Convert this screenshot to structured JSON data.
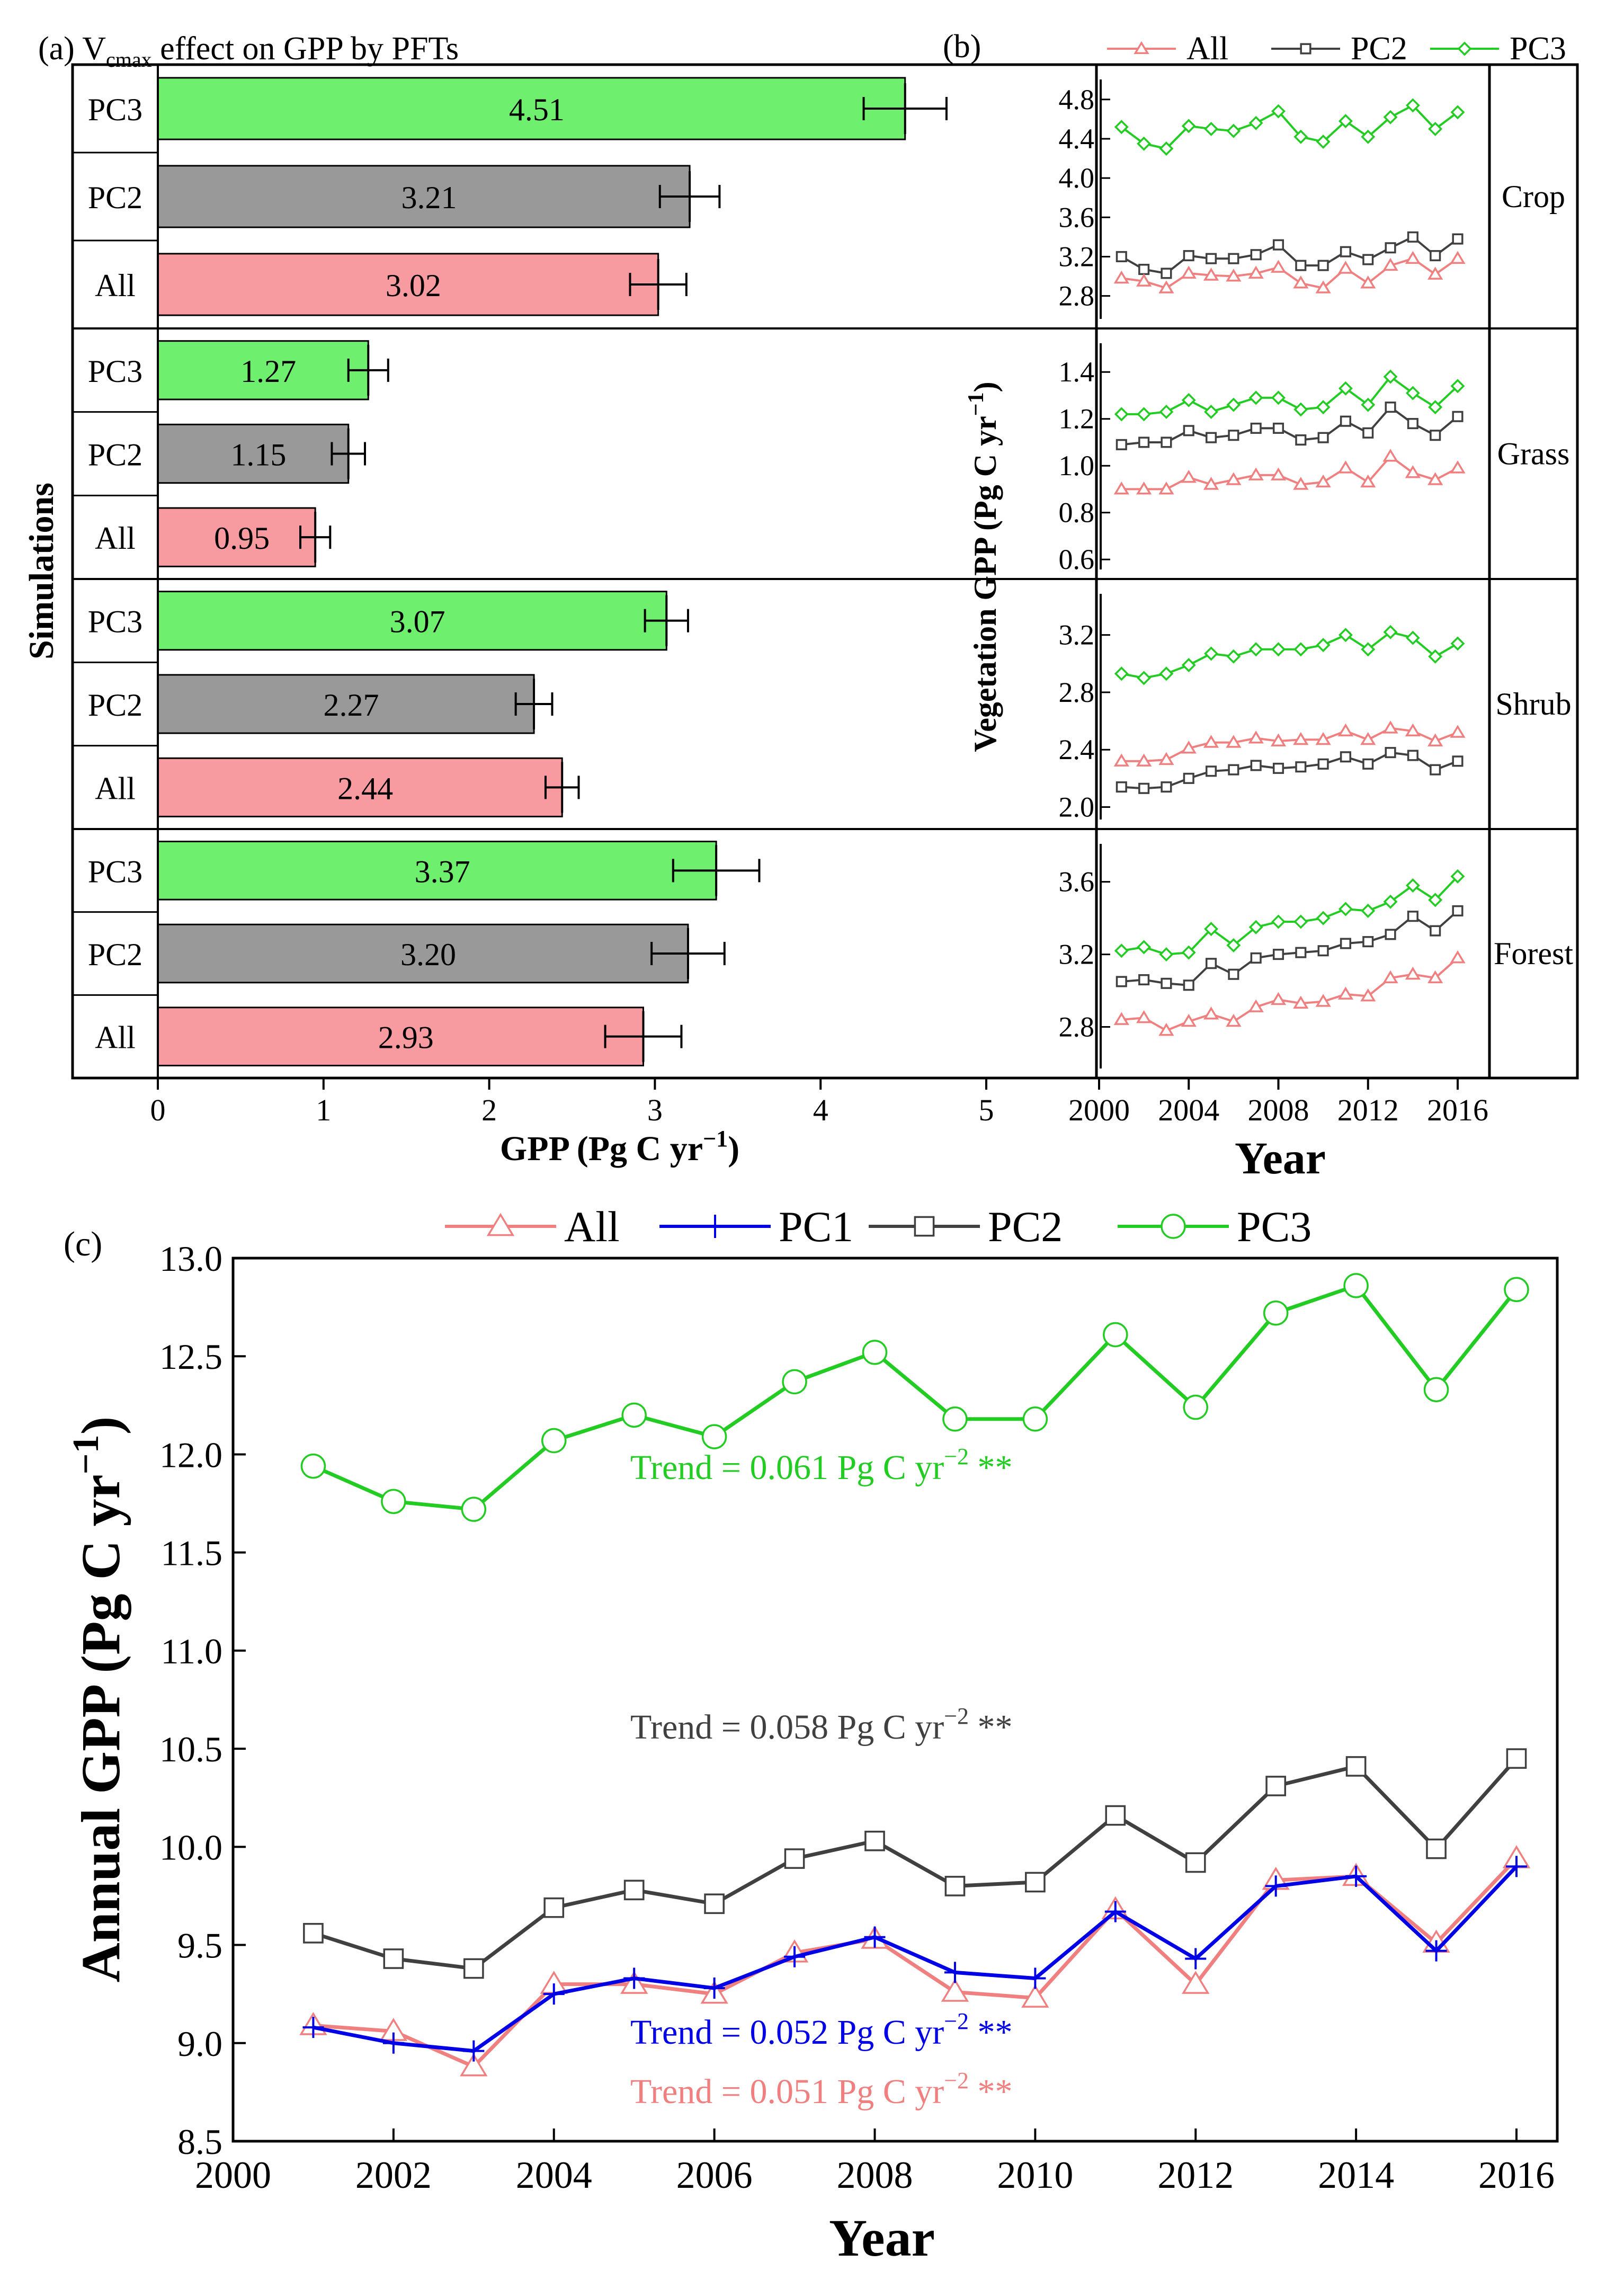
{
  "colors": {
    "all": "#f08080",
    "all_fill": "#f89ba0",
    "pc1": "#0000e6",
    "pc2": "#404040",
    "pc2_fill": "#999999",
    "pc3": "#22cc22",
    "pc3_fill": "#6ef06e",
    "axis": "#000000"
  },
  "chart_data": [
    {
      "panel": "a",
      "type": "bar",
      "orientation": "horizontal",
      "title_parts": {
        "prefix": "(a) V",
        "subscript": "cmax",
        "suffix": " effect on GPP by PFTs"
      },
      "xlabel": "GPP (Pg C yr",
      "xlabel_sup": "−1",
      "xlabel_close": ")",
      "ylabel": "Simulations",
      "xlim": [
        0,
        5
      ],
      "xticks": [
        "0",
        "1",
        "2",
        "3",
        "4",
        "5"
      ],
      "groups": [
        {
          "pft": "Crop",
          "bars": [
            {
              "sim": "PC3",
              "label": "PC3",
              "value": 4.51,
              "value_label": "4.51",
              "err": 0.25
            },
            {
              "sim": "PC2",
              "label": "PC2",
              "value": 3.21,
              "value_label": "3.21",
              "err": 0.18
            },
            {
              "sim": "All",
              "label": "All",
              "value": 3.02,
              "value_label": "3.02",
              "err": 0.17
            }
          ]
        },
        {
          "pft": "Grass",
          "bars": [
            {
              "sim": "PC3",
              "label": "PC3",
              "value": 1.27,
              "value_label": "1.27",
              "err": 0.12
            },
            {
              "sim": "PC2",
              "label": "PC2",
              "value": 1.15,
              "value_label": "1.15",
              "err": 0.1
            },
            {
              "sim": "All",
              "label": "All",
              "value": 0.95,
              "value_label": "0.95",
              "err": 0.09
            }
          ]
        },
        {
          "pft": "Shrub",
          "bars": [
            {
              "sim": "PC3",
              "label": "PC3",
              "value": 3.07,
              "value_label": "3.07",
              "err": 0.13
            },
            {
              "sim": "PC2",
              "label": "PC2",
              "value": 2.27,
              "value_label": "2.27",
              "err": 0.11
            },
            {
              "sim": "All",
              "label": "All",
              "value": 2.44,
              "value_label": "2.44",
              "err": 0.1
            }
          ]
        },
        {
          "pft": "Forest",
          "bars": [
            {
              "sim": "PC3",
              "label": "PC3",
              "value": 3.37,
              "value_label": "3.37",
              "err": 0.26
            },
            {
              "sim": "PC2",
              "label": "PC2",
              "value": 3.2,
              "value_label": "3.20",
              "err": 0.22
            },
            {
              "sim": "All",
              "label": "All",
              "value": 2.93,
              "value_label": "2.93",
              "err": 0.23
            }
          ]
        }
      ]
    },
    {
      "panel": "b",
      "type": "line",
      "title": "(b)",
      "ylabel": "Vegetation GPP (Pg C yr",
      "ylabel_sup": "−1",
      "ylabel_close": ")",
      "xlabel": "Year",
      "x": [
        2001,
        2002,
        2003,
        2004,
        2005,
        2006,
        2007,
        2008,
        2009,
        2010,
        2011,
        2012,
        2013,
        2014,
        2015,
        2016
      ],
      "xlim": [
        2000,
        2017
      ],
      "xticks": [
        "2000",
        "2004",
        "2008",
        "2012",
        "2016"
      ],
      "legend": [
        {
          "key": "all",
          "label": "All",
          "marker": "triangle"
        },
        {
          "key": "pc2",
          "label": "PC2",
          "marker": "square"
        },
        {
          "key": "pc3",
          "label": "PC3",
          "marker": "diamond"
        }
      ],
      "facets": [
        {
          "name": "Crop",
          "ylim": [
            2.62,
            4.95
          ],
          "yticks": [
            "2.8",
            "3.2",
            "3.6",
            "4.0",
            "4.4",
            "4.8"
          ],
          "series": {
            "pc3": [
              4.52,
              4.35,
              4.3,
              4.53,
              4.5,
              4.48,
              4.56,
              4.68,
              4.42,
              4.37,
              4.58,
              4.42,
              4.62,
              4.74,
              4.5,
              4.67
            ],
            "pc2": [
              3.2,
              3.07,
              3.03,
              3.21,
              3.18,
              3.18,
              3.22,
              3.32,
              3.11,
              3.11,
              3.25,
              3.17,
              3.29,
              3.4,
              3.21,
              3.38
            ],
            "all": [
              2.98,
              2.95,
              2.88,
              3.03,
              3.01,
              3.0,
              3.03,
              3.09,
              2.93,
              2.88,
              3.08,
              2.93,
              3.11,
              3.18,
              3.02,
              3.18
            ]
          }
        },
        {
          "name": "Grass",
          "ylim": [
            0.58,
            1.5
          ],
          "yticks": [
            "0.6",
            "0.8",
            "1.0",
            "1.2",
            "1.4"
          ],
          "series": {
            "pc3": [
              1.22,
              1.22,
              1.23,
              1.28,
              1.23,
              1.26,
              1.29,
              1.29,
              1.24,
              1.25,
              1.33,
              1.26,
              1.38,
              1.31,
              1.25,
              1.34
            ],
            "pc2": [
              1.09,
              1.1,
              1.1,
              1.15,
              1.12,
              1.13,
              1.16,
              1.16,
              1.11,
              1.12,
              1.19,
              1.14,
              1.25,
              1.18,
              1.13,
              1.21
            ],
            "all": [
              0.9,
              0.9,
              0.9,
              0.95,
              0.92,
              0.94,
              0.96,
              0.96,
              0.92,
              0.93,
              0.99,
              0.93,
              1.04,
              0.97,
              0.94,
              0.99
            ]
          }
        },
        {
          "name": "Shrub",
          "ylim": [
            1.95,
            3.45
          ],
          "yticks": [
            "2.0",
            "2.4",
            "2.8",
            "3.2"
          ],
          "series": {
            "pc3": [
              2.93,
              2.9,
              2.93,
              2.99,
              3.07,
              3.05,
              3.1,
              3.1,
              3.1,
              3.13,
              3.2,
              3.1,
              3.22,
              3.18,
              3.05,
              3.14
            ],
            "pc2": [
              2.14,
              2.13,
              2.14,
              2.2,
              2.25,
              2.26,
              2.29,
              2.27,
              2.28,
              2.3,
              2.35,
              2.3,
              2.38,
              2.36,
              2.26,
              2.32
            ],
            "all": [
              2.32,
              2.32,
              2.33,
              2.41,
              2.45,
              2.45,
              2.48,
              2.46,
              2.47,
              2.47,
              2.53,
              2.47,
              2.55,
              2.53,
              2.46,
              2.52
            ]
          }
        },
        {
          "name": "Forest",
          "ylim": [
            2.6,
            3.78
          ],
          "yticks": [
            "2.8",
            "3.2",
            "3.6"
          ],
          "series": {
            "pc3": [
              3.22,
              3.24,
              3.2,
              3.21,
              3.34,
              3.25,
              3.35,
              3.38,
              3.38,
              3.4,
              3.45,
              3.44,
              3.49,
              3.58,
              3.5,
              3.63
            ],
            "pc2": [
              3.05,
              3.06,
              3.04,
              3.03,
              3.15,
              3.09,
              3.18,
              3.2,
              3.21,
              3.22,
              3.26,
              3.27,
              3.31,
              3.41,
              3.33,
              3.44
            ],
            "all": [
              2.84,
              2.85,
              2.78,
              2.83,
              2.87,
              2.83,
              2.91,
              2.95,
              2.93,
              2.94,
              2.98,
              2.97,
              3.07,
              3.09,
              3.07,
              3.18
            ]
          }
        }
      ]
    },
    {
      "panel": "c",
      "type": "line",
      "title": "(c)",
      "ylabel": "Annual GPP (Pg C yr",
      "ylabel_sup": "−1",
      "ylabel_close": ")",
      "xlabel": "Year",
      "x": [
        2001,
        2002,
        2003,
        2004,
        2005,
        2006,
        2007,
        2008,
        2009,
        2010,
        2011,
        2012,
        2013,
        2014,
        2015,
        2016
      ],
      "xlim": [
        2000,
        2016.55
      ],
      "ylim": [
        8.5,
        13.0
      ],
      "xticks": [
        "2000",
        "2002",
        "2004",
        "2006",
        "2008",
        "2010",
        "2012",
        "2014",
        "2016"
      ],
      "yticks": [
        "8.5",
        "9.0",
        "9.5",
        "10.0",
        "10.5",
        "11.0",
        "11.5",
        "12.0",
        "12.5",
        "13.0"
      ],
      "legend": [
        {
          "key": "all",
          "label": "All",
          "marker": "triangle"
        },
        {
          "key": "pc1",
          "label": "PC1",
          "marker": "plus"
        },
        {
          "key": "pc2",
          "label": "PC2",
          "marker": "square"
        },
        {
          "key": "pc3",
          "label": "PC3",
          "marker": "circle"
        }
      ],
      "series": {
        "pc3": [
          11.94,
          11.76,
          11.72,
          12.07,
          12.2,
          12.09,
          12.37,
          12.52,
          12.18,
          12.18,
          12.61,
          12.24,
          12.72,
          12.86,
          12.33,
          12.84
        ],
        "pc2": [
          9.56,
          9.43,
          9.38,
          9.69,
          9.78,
          9.71,
          9.94,
          10.03,
          9.8,
          9.82,
          10.16,
          9.92,
          10.31,
          10.41,
          9.99,
          10.45
        ],
        "pc1": [
          9.08,
          9.0,
          8.96,
          9.25,
          9.33,
          9.28,
          9.44,
          9.54,
          9.36,
          9.33,
          9.67,
          9.43,
          9.8,
          9.85,
          9.47,
          9.9
        ],
        "all": [
          9.09,
          9.06,
          8.88,
          9.3,
          9.3,
          9.25,
          9.46,
          9.53,
          9.26,
          9.23,
          9.68,
          9.3,
          9.83,
          9.85,
          9.51,
          9.94
        ]
      },
      "annotations": [
        {
          "key": "pc3",
          "prefix": "Trend = 0.061 Pg C yr",
          "sup": "−2",
          "suffix": " **"
        },
        {
          "key": "pc2",
          "prefix": "Trend = 0.058 Pg C yr",
          "sup": "−2",
          "suffix": " **"
        },
        {
          "key": "pc1",
          "prefix": "Trend = 0.052 Pg C yr",
          "sup": "−2",
          "suffix": " **"
        },
        {
          "key": "all",
          "prefix": "Trend = 0.051 Pg C yr",
          "sup": "−2",
          "suffix": " **"
        }
      ]
    }
  ]
}
